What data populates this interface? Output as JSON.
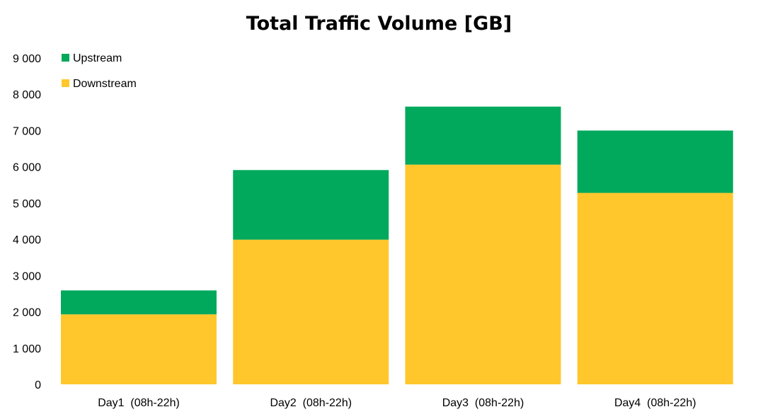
{
  "colors": {
    "upstream": "#00A95C",
    "downstream": "#FFC72C"
  },
  "chart_data": {
    "type": "bar",
    "stacked": true,
    "title": "Total Traffic Volume [GB]",
    "categories": [
      "Day1  (08h-22h)",
      "Day2  (08h-22h)",
      "Day3  (08h-22h)",
      "Day4  (08h-22h)"
    ],
    "series": [
      {
        "name": "Downstream",
        "values": [
          1930,
          3990,
          6060,
          5280
        ]
      },
      {
        "name": "Upstream",
        "values": [
          660,
          1920,
          1600,
          1720
        ]
      }
    ],
    "ylim": [
      0,
      9000
    ],
    "yticks": [
      "0",
      "1 000",
      "2 000",
      "3 000",
      "4 000",
      "5 000",
      "6 000",
      "7 000",
      "8 000",
      "9 000"
    ],
    "legend": {
      "placement": "top-left",
      "entries": [
        "Upstream",
        "Downstream"
      ]
    },
    "grid": false
  }
}
